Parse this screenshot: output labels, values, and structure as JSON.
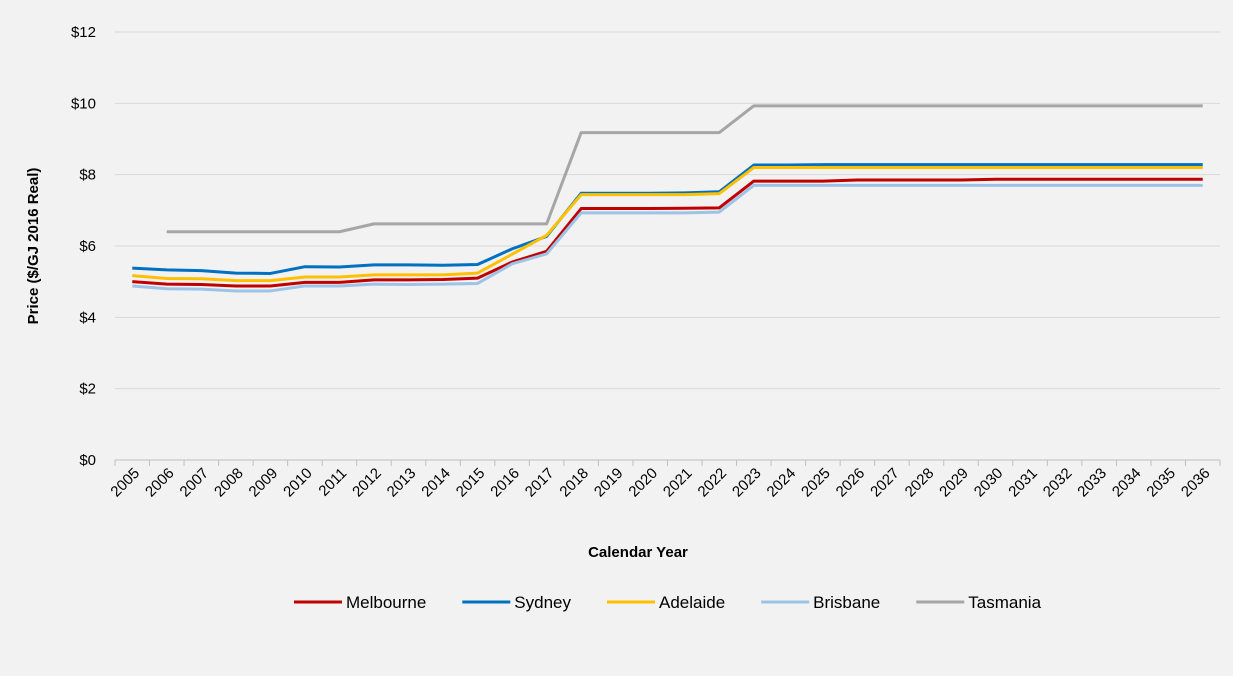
{
  "chart_data": {
    "type": "line",
    "title": "",
    "xlabel": "Calendar Year",
    "ylabel": "Price ($/GJ 2016 Real)",
    "ylim": [
      0,
      12
    ],
    "y_ticks": [
      0,
      2,
      4,
      6,
      8,
      10,
      12
    ],
    "y_tick_labels": [
      "$0",
      "$2",
      "$4",
      "$6",
      "$8",
      "$10",
      "$12"
    ],
    "grid": "horizontal",
    "legend_position": "bottom",
    "categories": [
      "2005",
      "2006",
      "2007",
      "2008",
      "2009",
      "2010",
      "2011",
      "2012",
      "2013",
      "2014",
      "2015",
      "2016",
      "2017",
      "2018",
      "2019",
      "2020",
      "2021",
      "2022",
      "2023",
      "2024",
      "2025",
      "2026",
      "2027",
      "2028",
      "2029",
      "2030",
      "2031",
      "2032",
      "2033",
      "2034",
      "2035",
      "2036"
    ],
    "series": [
      {
        "name": "Melbourne",
        "color": "#c00000",
        "values": [
          5.0,
          4.93,
          4.92,
          4.88,
          4.88,
          4.98,
          4.98,
          5.05,
          5.05,
          5.06,
          5.1,
          5.55,
          5.85,
          7.05,
          7.05,
          7.05,
          7.06,
          7.07,
          7.82,
          7.82,
          7.82,
          7.85,
          7.85,
          7.85,
          7.85,
          7.87,
          7.87,
          7.87,
          7.87,
          7.87,
          7.87,
          7.87
        ]
      },
      {
        "name": "Sydney",
        "color": "#0070c0",
        "values": [
          5.38,
          5.33,
          5.31,
          5.24,
          5.23,
          5.42,
          5.41,
          5.47,
          5.47,
          5.46,
          5.48,
          5.92,
          6.27,
          7.48,
          7.48,
          7.48,
          7.49,
          7.52,
          8.27,
          8.27,
          8.28,
          8.28,
          8.28,
          8.28,
          8.28,
          8.28,
          8.28,
          8.28,
          8.28,
          8.28,
          8.28,
          8.28
        ]
      },
      {
        "name": "Adelaide",
        "color": "#ffc000",
        "values": [
          5.17,
          5.09,
          5.08,
          5.03,
          5.03,
          5.13,
          5.13,
          5.19,
          5.19,
          5.19,
          5.24,
          5.77,
          6.3,
          7.44,
          7.44,
          7.44,
          7.44,
          7.47,
          8.2,
          8.2,
          8.2,
          8.2,
          8.2,
          8.2,
          8.2,
          8.2,
          8.2,
          8.2,
          8.2,
          8.2,
          8.2,
          8.2
        ]
      },
      {
        "name": "Brisbane",
        "color": "#9dc3e6",
        "values": [
          4.88,
          4.8,
          4.79,
          4.74,
          4.74,
          4.88,
          4.88,
          4.93,
          4.92,
          4.93,
          4.95,
          5.5,
          5.78,
          6.93,
          6.93,
          6.93,
          6.93,
          6.95,
          7.7,
          7.7,
          7.7,
          7.7,
          7.7,
          7.7,
          7.7,
          7.7,
          7.7,
          7.7,
          7.7,
          7.7,
          7.7,
          7.7
        ]
      },
      {
        "name": "Tasmania",
        "color": "#a6a6a6",
        "values": [
          null,
          6.4,
          6.4,
          6.4,
          6.4,
          6.4,
          6.4,
          6.62,
          6.62,
          6.62,
          6.62,
          6.62,
          6.62,
          9.18,
          9.18,
          9.18,
          9.18,
          9.18,
          9.93,
          9.93,
          9.93,
          9.93,
          9.93,
          9.93,
          9.93,
          9.93,
          9.93,
          9.93,
          9.93,
          9.93,
          9.93,
          9.93
        ]
      }
    ]
  }
}
